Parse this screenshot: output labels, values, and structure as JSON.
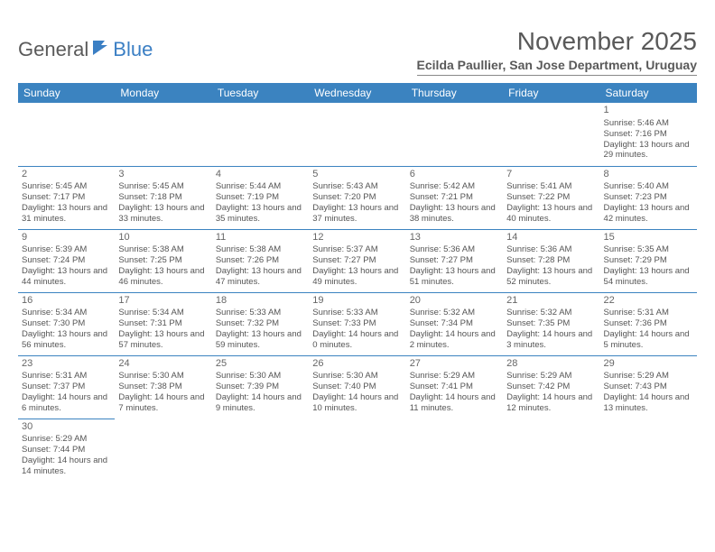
{
  "logo": {
    "general": "General",
    "blue": "Blue"
  },
  "title": "November 2025",
  "location": "Ecilda Paullier, San Jose Department, Uruguay",
  "colors": {
    "header_bg": "#3b83c0",
    "header_text": "#ffffff",
    "cell_border": "#3b83c0",
    "text": "#555555",
    "title_text": "#595959"
  },
  "weekdays": [
    "Sunday",
    "Monday",
    "Tuesday",
    "Wednesday",
    "Thursday",
    "Friday",
    "Saturday"
  ],
  "weeks": [
    [
      null,
      null,
      null,
      null,
      null,
      null,
      {
        "n": "1",
        "sr": "Sunrise: 5:46 AM",
        "ss": "Sunset: 7:16 PM",
        "dl": "Daylight: 13 hours and 29 minutes."
      }
    ],
    [
      {
        "n": "2",
        "sr": "Sunrise: 5:45 AM",
        "ss": "Sunset: 7:17 PM",
        "dl": "Daylight: 13 hours and 31 minutes."
      },
      {
        "n": "3",
        "sr": "Sunrise: 5:45 AM",
        "ss": "Sunset: 7:18 PM",
        "dl": "Daylight: 13 hours and 33 minutes."
      },
      {
        "n": "4",
        "sr": "Sunrise: 5:44 AM",
        "ss": "Sunset: 7:19 PM",
        "dl": "Daylight: 13 hours and 35 minutes."
      },
      {
        "n": "5",
        "sr": "Sunrise: 5:43 AM",
        "ss": "Sunset: 7:20 PM",
        "dl": "Daylight: 13 hours and 37 minutes."
      },
      {
        "n": "6",
        "sr": "Sunrise: 5:42 AM",
        "ss": "Sunset: 7:21 PM",
        "dl": "Daylight: 13 hours and 38 minutes."
      },
      {
        "n": "7",
        "sr": "Sunrise: 5:41 AM",
        "ss": "Sunset: 7:22 PM",
        "dl": "Daylight: 13 hours and 40 minutes."
      },
      {
        "n": "8",
        "sr": "Sunrise: 5:40 AM",
        "ss": "Sunset: 7:23 PM",
        "dl": "Daylight: 13 hours and 42 minutes."
      }
    ],
    [
      {
        "n": "9",
        "sr": "Sunrise: 5:39 AM",
        "ss": "Sunset: 7:24 PM",
        "dl": "Daylight: 13 hours and 44 minutes."
      },
      {
        "n": "10",
        "sr": "Sunrise: 5:38 AM",
        "ss": "Sunset: 7:25 PM",
        "dl": "Daylight: 13 hours and 46 minutes."
      },
      {
        "n": "11",
        "sr": "Sunrise: 5:38 AM",
        "ss": "Sunset: 7:26 PM",
        "dl": "Daylight: 13 hours and 47 minutes."
      },
      {
        "n": "12",
        "sr": "Sunrise: 5:37 AM",
        "ss": "Sunset: 7:27 PM",
        "dl": "Daylight: 13 hours and 49 minutes."
      },
      {
        "n": "13",
        "sr": "Sunrise: 5:36 AM",
        "ss": "Sunset: 7:27 PM",
        "dl": "Daylight: 13 hours and 51 minutes."
      },
      {
        "n": "14",
        "sr": "Sunrise: 5:36 AM",
        "ss": "Sunset: 7:28 PM",
        "dl": "Daylight: 13 hours and 52 minutes."
      },
      {
        "n": "15",
        "sr": "Sunrise: 5:35 AM",
        "ss": "Sunset: 7:29 PM",
        "dl": "Daylight: 13 hours and 54 minutes."
      }
    ],
    [
      {
        "n": "16",
        "sr": "Sunrise: 5:34 AM",
        "ss": "Sunset: 7:30 PM",
        "dl": "Daylight: 13 hours and 56 minutes."
      },
      {
        "n": "17",
        "sr": "Sunrise: 5:34 AM",
        "ss": "Sunset: 7:31 PM",
        "dl": "Daylight: 13 hours and 57 minutes."
      },
      {
        "n": "18",
        "sr": "Sunrise: 5:33 AM",
        "ss": "Sunset: 7:32 PM",
        "dl": "Daylight: 13 hours and 59 minutes."
      },
      {
        "n": "19",
        "sr": "Sunrise: 5:33 AM",
        "ss": "Sunset: 7:33 PM",
        "dl": "Daylight: 14 hours and 0 minutes."
      },
      {
        "n": "20",
        "sr": "Sunrise: 5:32 AM",
        "ss": "Sunset: 7:34 PM",
        "dl": "Daylight: 14 hours and 2 minutes."
      },
      {
        "n": "21",
        "sr": "Sunrise: 5:32 AM",
        "ss": "Sunset: 7:35 PM",
        "dl": "Daylight: 14 hours and 3 minutes."
      },
      {
        "n": "22",
        "sr": "Sunrise: 5:31 AM",
        "ss": "Sunset: 7:36 PM",
        "dl": "Daylight: 14 hours and 5 minutes."
      }
    ],
    [
      {
        "n": "23",
        "sr": "Sunrise: 5:31 AM",
        "ss": "Sunset: 7:37 PM",
        "dl": "Daylight: 14 hours and 6 minutes."
      },
      {
        "n": "24",
        "sr": "Sunrise: 5:30 AM",
        "ss": "Sunset: 7:38 PM",
        "dl": "Daylight: 14 hours and 7 minutes."
      },
      {
        "n": "25",
        "sr": "Sunrise: 5:30 AM",
        "ss": "Sunset: 7:39 PM",
        "dl": "Daylight: 14 hours and 9 minutes."
      },
      {
        "n": "26",
        "sr": "Sunrise: 5:30 AM",
        "ss": "Sunset: 7:40 PM",
        "dl": "Daylight: 14 hours and 10 minutes."
      },
      {
        "n": "27",
        "sr": "Sunrise: 5:29 AM",
        "ss": "Sunset: 7:41 PM",
        "dl": "Daylight: 14 hours and 11 minutes."
      },
      {
        "n": "28",
        "sr": "Sunrise: 5:29 AM",
        "ss": "Sunset: 7:42 PM",
        "dl": "Daylight: 14 hours and 12 minutes."
      },
      {
        "n": "29",
        "sr": "Sunrise: 5:29 AM",
        "ss": "Sunset: 7:43 PM",
        "dl": "Daylight: 14 hours and 13 minutes."
      }
    ],
    [
      {
        "n": "30",
        "sr": "Sunrise: 5:29 AM",
        "ss": "Sunset: 7:44 PM",
        "dl": "Daylight: 14 hours and 14 minutes."
      },
      null,
      null,
      null,
      null,
      null,
      null
    ]
  ]
}
